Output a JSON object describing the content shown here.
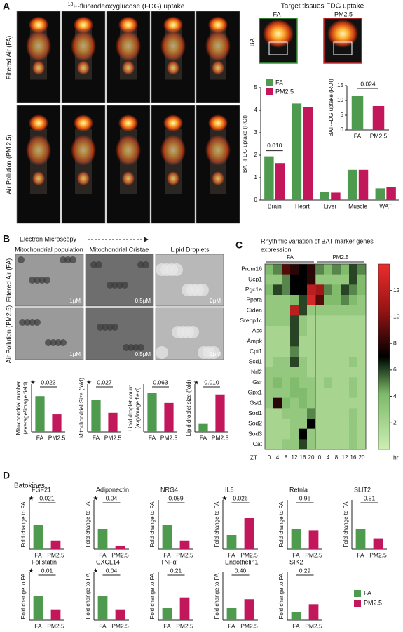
{
  "panel_a": {
    "label": "A",
    "title_sup": "18",
    "title": "F-fluorodeoxyglucose (FDG) uptake",
    "row_labels": [
      "Filtered Air (FA)",
      "Air Pollution (PM 2.5)"
    ],
    "target_title": "Target tissues FDG uptake",
    "image_labels": [
      "FA",
      "PM2.5"
    ],
    "tissue_label": "BAT"
  },
  "panel_b": {
    "label": "B",
    "header": "Electron Microscopy",
    "column_titles": [
      "Mitochondrial population",
      "Mitochondrial Cristae",
      "Lipid Droplets"
    ],
    "row_labels": [
      "Filtered Air (FA)",
      "Air Pollution (PM2.5)"
    ],
    "scale_labels": [
      [
        "1μM",
        "0.5μM",
        "2μM"
      ],
      [
        "1μM",
        "0.5μM",
        "2μM"
      ]
    ]
  },
  "panel_c": {
    "label": "C"
  },
  "panel_d": {
    "label": "D",
    "title": "Batokines",
    "legend": [
      {
        "name": "FA",
        "color": "#4e9a4e"
      },
      {
        "name": "PM2.5",
        "color": "#c2185b"
      }
    ]
  },
  "chart_data": [
    {
      "type": "bar",
      "ylabel": "BAT-FDG uptake (ROI)",
      "categories": [
        "Brain",
        "Heart",
        "Liver",
        "Muscle",
        "WAT"
      ],
      "series": [
        {
          "name": "FA",
          "color": "#4e9a4e",
          "values": [
            1.95,
            4.3,
            0.35,
            1.35,
            0.52
          ]
        },
        {
          "name": "PM2.5",
          "color": "#c2185b",
          "values": [
            1.65,
            4.15,
            0.33,
            1.35,
            0.58
          ]
        }
      ],
      "ylim": [
        0,
        5
      ],
      "yticks": [
        0,
        1,
        2,
        3,
        4,
        5
      ],
      "p_value": "0.010"
    },
    {
      "type": "bar",
      "ylabel": "BAT-FDG uptake (ROI)",
      "categories": [
        "FA",
        "PM2.5"
      ],
      "values": [
        11.6,
        8.1
      ],
      "colors": [
        "#4e9a4e",
        "#c2185b"
      ],
      "ylim": [
        0,
        15
      ],
      "yticks": [
        0,
        5,
        10,
        15
      ],
      "p_value": "0.024"
    },
    {
      "type": "bar",
      "ylabel": [
        "Mitochondrial number",
        "(average/image field)"
      ],
      "categories": [
        "FA",
        "PM2.5"
      ],
      "values": [
        112,
        55
      ],
      "colors": [
        "#4e9a4e",
        "#c2185b"
      ],
      "ylim": [
        0,
        150
      ],
      "p_value": "0.023",
      "significance": "★"
    },
    {
      "type": "bar",
      "ylabel": [
        "Mitochondrial Size (fold)"
      ],
      "categories": [
        "FA",
        "PM2.5"
      ],
      "values": [
        1.0,
        0.6
      ],
      "colors": [
        "#4e9a4e",
        "#c2185b"
      ],
      "ylim": [
        0,
        1.5
      ],
      "p_value": "0.027",
      "significance": "★"
    },
    {
      "type": "bar",
      "ylabel": [
        "Lipid droplet count",
        "(avg/image field)"
      ],
      "categories": [
        "FA",
        "PM2.5"
      ],
      "values": [
        16.2,
        12.1
      ],
      "colors": [
        "#4e9a4e",
        "#c2185b"
      ],
      "ylim": [
        0,
        20
      ],
      "p_value": "0.063"
    },
    {
      "type": "bar",
      "ylabel": [
        "Lipid droplet size (fold)"
      ],
      "categories": [
        "FA",
        "PM2.5"
      ],
      "values": [
        1.0,
        4.7
      ],
      "colors": [
        "#4e9a4e",
        "#c2185b"
      ],
      "ylim": [
        0,
        6
      ],
      "p_value": "0.010",
      "significance": "★"
    },
    {
      "type": "heatmap",
      "title": [
        "Rhythmic variation of BAT marker genes",
        "expression"
      ],
      "rows": [
        "Prdm16",
        "Ucp1",
        "Pgc1a",
        "Ppara",
        "Cidea",
        "Srebp1c",
        "Acc",
        "Ampk",
        "Cpt1",
        "Scd1",
        "Nrf2",
        "Gsr",
        "Gpx1",
        "Gst1",
        "Sod1",
        "Sod2",
        "Sod3",
        "Cat"
      ],
      "groups": [
        "FA",
        "PM2.5"
      ],
      "x_label": "ZT",
      "x": [
        0,
        4,
        8,
        12,
        16,
        20,
        0,
        4,
        8,
        12,
        16,
        20
      ],
      "values": [
        [
          4,
          5,
          9,
          8,
          7,
          8,
          5,
          4,
          5,
          4,
          6,
          5
        ],
        [
          3,
          3,
          5,
          7,
          7,
          8,
          3,
          3,
          3,
          3,
          6,
          4
        ],
        [
          4,
          6,
          5,
          7,
          7,
          12,
          11,
          5,
          4,
          6,
          5,
          4
        ],
        [
          3,
          3,
          3,
          4,
          6,
          13,
          9,
          4,
          4,
          5,
          4,
          3
        ],
        [
          3,
          3,
          3,
          12,
          6,
          3,
          3,
          3,
          3,
          3,
          3,
          3
        ],
        [
          3,
          3,
          3,
          6,
          3,
          2,
          2,
          2,
          2,
          2,
          2,
          2
        ],
        [
          2,
          2,
          2,
          6,
          3,
          2,
          2,
          2,
          2,
          2,
          2,
          2
        ],
        [
          2,
          2,
          2,
          6,
          2,
          2,
          2,
          2,
          2,
          2,
          2,
          2
        ],
        [
          2,
          2,
          2,
          5,
          2,
          2,
          2,
          2,
          2,
          2,
          2,
          2
        ],
        [
          2,
          3,
          3,
          6,
          3,
          2,
          2,
          2,
          2,
          2,
          3,
          2
        ],
        [
          3,
          3,
          3,
          3,
          3,
          2,
          2,
          2,
          2,
          2,
          2,
          2
        ],
        [
          3,
          4,
          3,
          4,
          3,
          3,
          2,
          3,
          2,
          2,
          3,
          2
        ],
        [
          3,
          3,
          3,
          4,
          4,
          3,
          2,
          2,
          2,
          2,
          3,
          2
        ],
        [
          3,
          8,
          4,
          3,
          4,
          3,
          2,
          2,
          2,
          2,
          2,
          2
        ],
        [
          2,
          2,
          3,
          3,
          3,
          5,
          2,
          2,
          2,
          2,
          3,
          2
        ],
        [
          2,
          2,
          2,
          3,
          3,
          7,
          2,
          2,
          2,
          2,
          3,
          2
        ],
        [
          2,
          2,
          2,
          3,
          7,
          3,
          2,
          2,
          2,
          2,
          3,
          2
        ],
        [
          2,
          2,
          3,
          3,
          6,
          3,
          2,
          2,
          2,
          2,
          3,
          2
        ]
      ],
      "clim": [
        0,
        14
      ],
      "colorbar_ticks": [
        2,
        4,
        6,
        8,
        10,
        12
      ],
      "colorbar_label": "hr"
    },
    {
      "type": "bar",
      "title": "FGF21",
      "ylabel": "Fold change to FA",
      "categories": [
        "FA",
        "PM2.5"
      ],
      "values": [
        1.0,
        0.35
      ],
      "colors": [
        "#4e9a4e",
        "#c2185b"
      ],
      "ylim": [
        0,
        2
      ],
      "p_value": "0.021",
      "significance": "★"
    },
    {
      "type": "bar",
      "title": "Adiponectin",
      "ylabel": "Fold change to FA",
      "categories": [
        "FA",
        "PM2.5"
      ],
      "values": [
        1.0,
        0.18
      ],
      "colors": [
        "#4e9a4e",
        "#c2185b"
      ],
      "ylim": [
        0,
        2.5
      ],
      "p_value": "0.04",
      "significance": "★"
    },
    {
      "type": "bar",
      "title": "NRG4",
      "ylabel": "Fold change to FA",
      "categories": [
        "FA",
        "PM2.5"
      ],
      "values": [
        1.0,
        0.35
      ],
      "colors": [
        "#4e9a4e",
        "#c2185b"
      ],
      "ylim": [
        0,
        2
      ],
      "p_value": "0.059"
    },
    {
      "type": "bar",
      "title": "IL6",
      "ylabel": "Fold change to FA",
      "categories": [
        "FA",
        "PM2.5"
      ],
      "values": [
        1.0,
        2.2
      ],
      "colors": [
        "#4e9a4e",
        "#c2185b"
      ],
      "ylim": [
        0,
        3.5
      ],
      "p_value": "0.026",
      "significance": "★"
    },
    {
      "type": "bar",
      "title": "Retnla",
      "ylabel": "Fold change to FA",
      "categories": [
        "FA",
        "PM2.5"
      ],
      "values": [
        1.0,
        0.95
      ],
      "colors": [
        "#4e9a4e",
        "#c2185b"
      ],
      "ylim": [
        0,
        2.5
      ],
      "p_value": "0.96"
    },
    {
      "type": "bar",
      "title": "SLIT2",
      "ylabel": "Fold change to FA",
      "categories": [
        "FA",
        "PM2.5"
      ],
      "values": [
        1.0,
        0.55
      ],
      "colors": [
        "#4e9a4e",
        "#c2185b"
      ],
      "ylim": [
        0,
        2.5
      ],
      "p_value": "0.51"
    },
    {
      "type": "bar",
      "title": "Folistatin",
      "ylabel": "Fold change to FA",
      "categories": [
        "FA",
        "PM2.5"
      ],
      "values": [
        1.0,
        0.45
      ],
      "colors": [
        "#4e9a4e",
        "#c2185b"
      ],
      "ylim": [
        0,
        2
      ],
      "p_value": "0.01",
      "significance": "★"
    },
    {
      "type": "bar",
      "title": "CXCL14",
      "ylabel": "Fold change to FA",
      "categories": [
        "FA",
        "PM2.5"
      ],
      "values": [
        1.0,
        0.45
      ],
      "colors": [
        "#4e9a4e",
        "#c2185b"
      ],
      "ylim": [
        0,
        2
      ],
      "p_value": "0.04",
      "significance": "★"
    },
    {
      "type": "bar",
      "title": "TNFα",
      "ylabel": "Fold change to FA",
      "categories": [
        "FA",
        "PM2.5"
      ],
      "values": [
        1.0,
        1.9
      ],
      "colors": [
        "#4e9a4e",
        "#c2185b"
      ],
      "ylim": [
        0,
        4
      ],
      "p_value": "0.21"
    },
    {
      "type": "bar",
      "title": "Endothelin1",
      "ylabel": "Fold change to FA",
      "categories": [
        "FA",
        "PM2.5"
      ],
      "values": [
        1.0,
        1.75
      ],
      "colors": [
        "#4e9a4e",
        "#c2185b"
      ],
      "ylim": [
        0,
        4
      ],
      "p_value": "0.40"
    },
    {
      "type": "bar",
      "title": "SIK2",
      "ylabel": "Fold change to FA",
      "categories": [
        "FA",
        "PM2.5"
      ],
      "values": [
        1.0,
        2.0
      ],
      "colors": [
        "#4e9a4e",
        "#c2185b"
      ],
      "ylim": [
        0,
        6
      ],
      "p_value": "0.29"
    }
  ]
}
